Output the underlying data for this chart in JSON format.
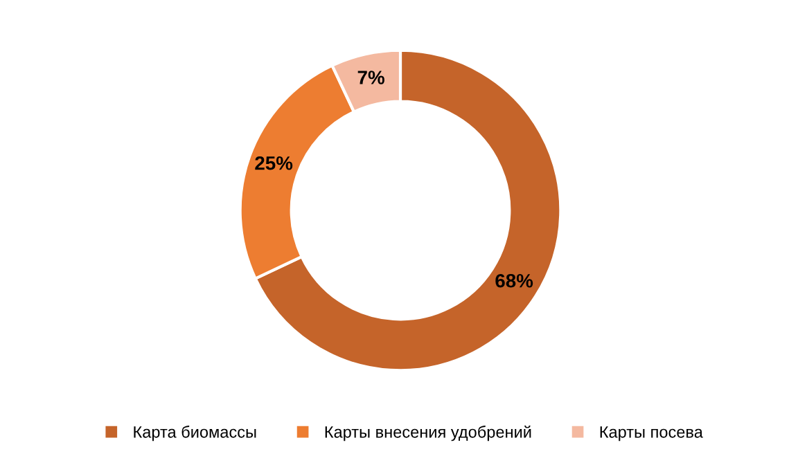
{
  "chart_data": {
    "type": "donut",
    "categories": [
      "Карта биомассы",
      "Карты внесения удобрений",
      "Карты посева"
    ],
    "values": [
      68,
      25,
      7
    ],
    "colors": [
      "#c5642a",
      "#ed7d31",
      "#f4b9a0"
    ],
    "value_labels": [
      "68%",
      "25%",
      "7%"
    ],
    "legend": "bottom"
  }
}
